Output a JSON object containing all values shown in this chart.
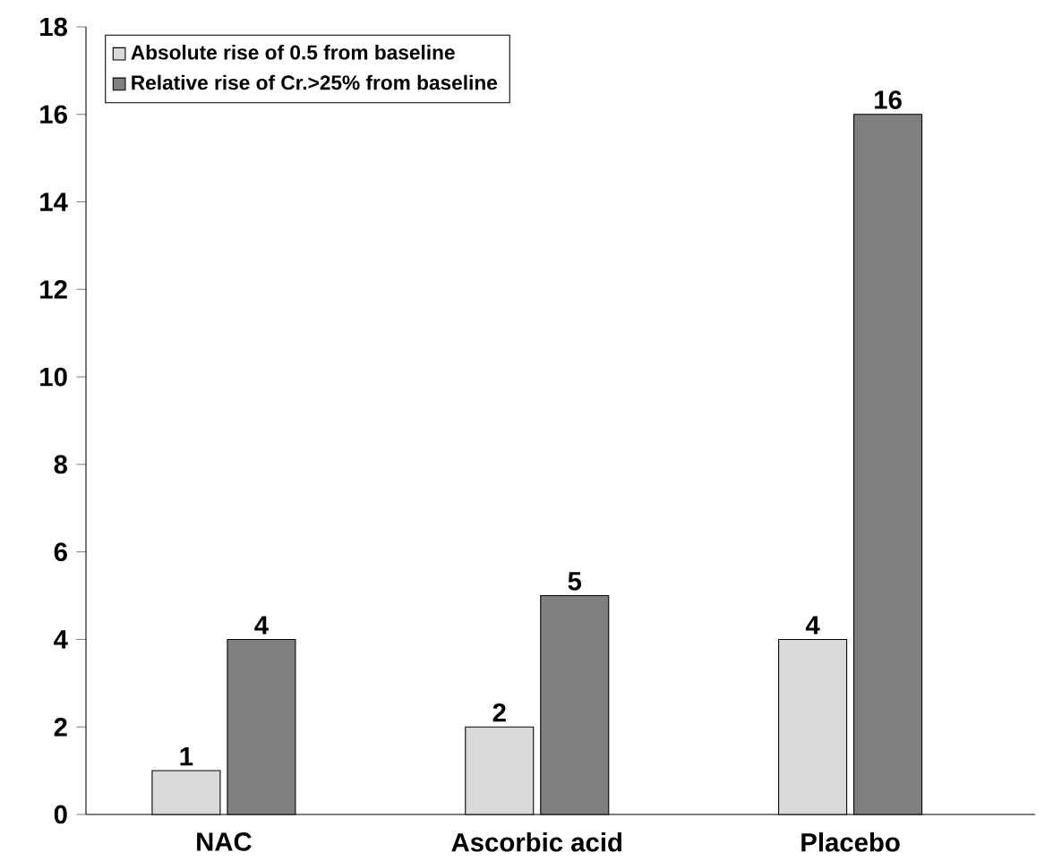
{
  "chart_data": {
    "type": "bar",
    "categories": [
      "NAC",
      "Ascorbic acid",
      "Placebo"
    ],
    "series": [
      {
        "name": "Absolute rise of 0.5 from baseline",
        "color": "#d9d9d9",
        "values": [
          1,
          2,
          4
        ]
      },
      {
        "name": "Relative rise of Cr.>25% from baseline",
        "color": "#7f7f7f",
        "values": [
          4,
          5,
          16
        ]
      }
    ],
    "ylim": [
      0,
      18
    ],
    "yticks": [
      0,
      2,
      4,
      6,
      8,
      10,
      12,
      14,
      16,
      18
    ],
    "data_labels": true,
    "legend": "top left",
    "grid": false
  }
}
